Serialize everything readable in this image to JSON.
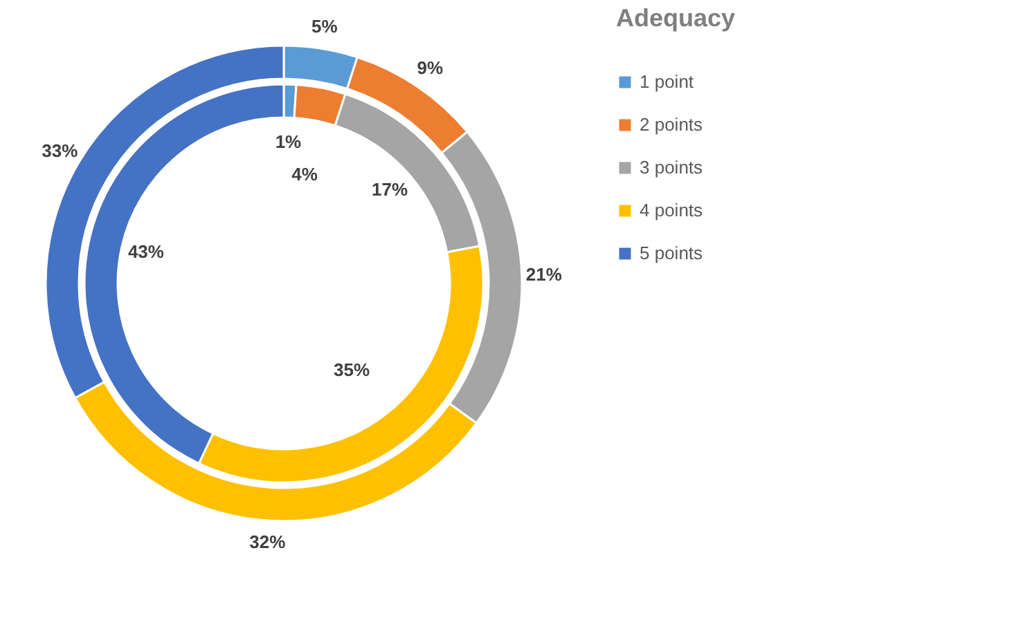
{
  "chart_data": {
    "type": "donut",
    "legend_title": "Adequacy",
    "legend": "right",
    "categories": [
      "1 point",
      "2 points",
      "3 points",
      "4 points",
      "5 points"
    ],
    "series": [
      {
        "values": [
          5,
          9,
          21,
          32,
          33
        ],
        "colors": [
          "#5b9bd5",
          "#ed7d31",
          "#a5a5a5",
          "#ffc000",
          "#4472c4"
        ],
        "value_labels": [
          "5%",
          "9%",
          "21%",
          "32%",
          "33%"
        ]
      },
      {
        "values": [
          1,
          4,
          17,
          35,
          43
        ],
        "colors": [
          "#5b9bd5",
          "#ed7d31",
          "#a5a5a5",
          "#ffc000",
          "#4472c4"
        ],
        "value_labels": [
          "1%",
          "4%",
          "17%",
          "35%",
          "43%"
        ]
      }
    ]
  }
}
